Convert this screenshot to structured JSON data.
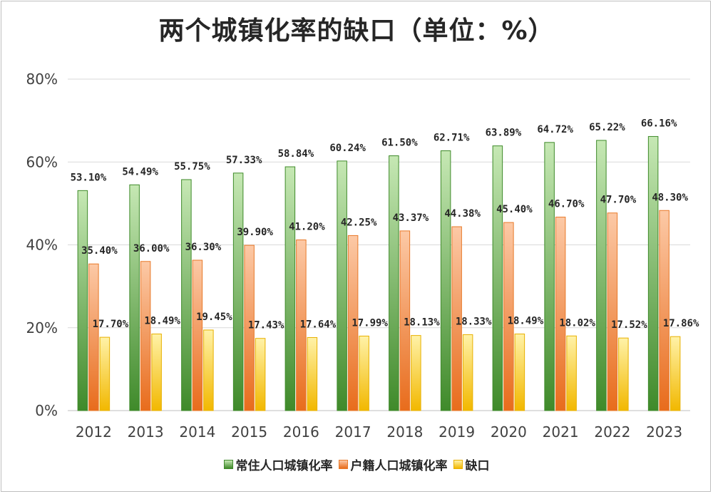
{
  "chart_data": {
    "type": "bar",
    "title": "两个城镇化率的缺口（单位：%）",
    "categories": [
      "2012",
      "2013",
      "2014",
      "2015",
      "2016",
      "2017",
      "2018",
      "2019",
      "2020",
      "2021",
      "2022",
      "2023"
    ],
    "series": [
      {
        "name": "常住人口城镇化率",
        "values": [
          53.1,
          54.49,
          55.75,
          57.33,
          58.84,
          60.24,
          61.5,
          62.71,
          63.89,
          64.72,
          65.22,
          66.16
        ],
        "labels": [
          "53.10%",
          "54.49%",
          "55.75%",
          "57.33%",
          "58.84%",
          "60.24%",
          "61.50%",
          "62.71%",
          "63.89%",
          "64.72%",
          "65.22%",
          "66.16%"
        ]
      },
      {
        "name": "户籍人口城镇化率",
        "values": [
          35.4,
          36.0,
          36.3,
          39.9,
          41.2,
          42.25,
          43.37,
          44.38,
          45.4,
          46.7,
          47.7,
          48.3
        ],
        "labels": [
          "35.40%",
          "36.00%",
          "36.30%",
          "39.90%",
          "41.20%",
          "42.25%",
          "43.37%",
          "44.38%",
          "45.40%",
          "46.70%",
          "47.70%",
          "48.30%"
        ]
      },
      {
        "name": "缺口",
        "values": [
          17.7,
          18.49,
          19.45,
          17.43,
          17.64,
          17.99,
          18.13,
          18.33,
          18.49,
          18.02,
          17.52,
          17.86
        ],
        "labels": [
          "17.70%",
          "18.49%",
          "19.45%",
          "17.43%",
          "17.64%",
          "17.99%",
          "18.13%",
          "18.33%",
          "18.49%",
          "18.02%",
          "17.52%",
          "17.86%"
        ]
      }
    ],
    "yticks": [
      "0%",
      "20%",
      "40%",
      "60%",
      "80%"
    ],
    "ylim": [
      0,
      80
    ],
    "grid": true,
    "legend_position": "bottom",
    "colors": {
      "series_top": [
        "#c6e8b4",
        "#fcc9a6",
        "#fff2a8"
      ],
      "series_bottom": [
        "#3f8a2a",
        "#e86c1c",
        "#f2b800"
      ],
      "series_border": [
        "#3f8a2a",
        "#e87a2a",
        "#e8b000"
      ]
    }
  }
}
